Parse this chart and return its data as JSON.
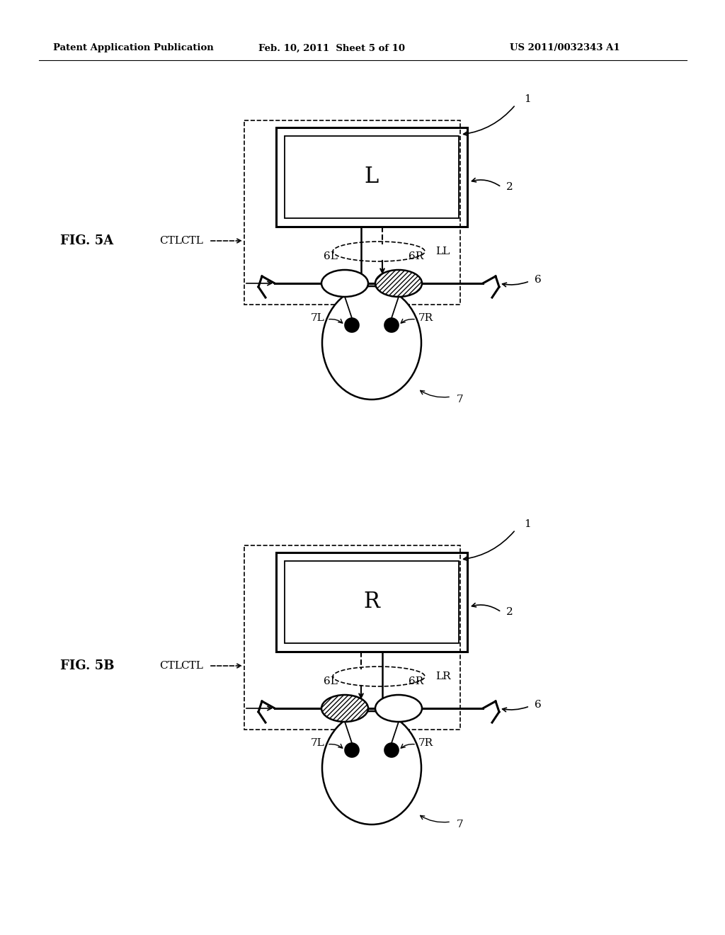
{
  "header_left": "Patent Application Publication",
  "header_mid": "Feb. 10, 2011  Sheet 5 of 10",
  "header_right": "US 2011/0032343 A1",
  "fig_label_A": "FIG. 5A",
  "fig_label_B": "FIG. 5B",
  "screen_label_A": "L",
  "screen_label_B": "R",
  "light_label_A": "LL",
  "light_label_B": "LR",
  "label_1": "1",
  "label_2": "2",
  "label_6": "6",
  "label_6L": "6L",
  "label_6R": "6R",
  "label_7": "7",
  "label_7L": "7L",
  "label_7R": "7R",
  "label_CTL": "CTL",
  "bg_color": "#ffffff",
  "line_color": "#000000"
}
